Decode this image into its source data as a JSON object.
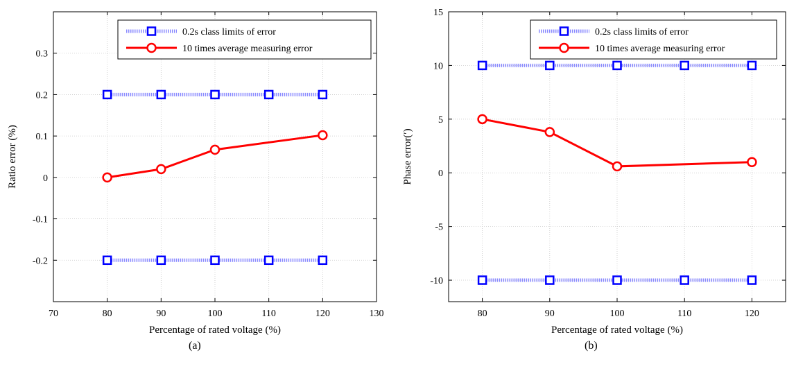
{
  "chart_data": [
    {
      "type": "line",
      "caption": "(a)",
      "xlabel": "Percentage of rated voltage (%)",
      "ylabel": "Ratio error (%)",
      "xlim": [
        70,
        130
      ],
      "ylim": [
        -0.3,
        0.4
      ],
      "xticks": [
        70,
        80,
        90,
        100,
        110,
        120,
        130
      ],
      "yticks": [
        -0.2,
        -0.1,
        0,
        0.1,
        0.2,
        0.3
      ],
      "ytick_labels": [
        "-0.2",
        "-0.1",
        "0",
        "0.1",
        "0.2",
        "0.3"
      ],
      "grid": true,
      "legend_position": "top-right",
      "series": [
        {
          "name": "0.2s class limits of error",
          "color": "#0000ff",
          "marker": "square",
          "style": "dotted",
          "x": [
            80,
            90,
            100,
            110,
            120
          ],
          "y": [
            0.2,
            0.2,
            0.2,
            0.2,
            0.2
          ]
        },
        {
          "name": "0.2s class limits of error",
          "color": "#0000ff",
          "marker": "square",
          "style": "dotted",
          "legend": false,
          "x": [
            80,
            90,
            100,
            110,
            120
          ],
          "y": [
            -0.2,
            -0.2,
            -0.2,
            -0.2,
            -0.2
          ]
        },
        {
          "name": "10 times average measuring error",
          "color": "#ff0000",
          "marker": "circle",
          "style": "solid",
          "x": [
            80,
            90,
            100,
            120
          ],
          "y": [
            0.0,
            0.02,
            0.067,
            0.102
          ]
        }
      ]
    },
    {
      "type": "line",
      "caption": "(b)",
      "xlabel": "Percentage of rated voltage (%)",
      "ylabel": "Phase error(′)",
      "xlim": [
        75,
        125
      ],
      "ylim": [
        -12,
        15
      ],
      "xticks": [
        80,
        90,
        100,
        110,
        120
      ],
      "yticks": [
        -10,
        -5,
        0,
        5,
        10,
        15
      ],
      "ytick_labels": [
        "-10",
        "-5",
        "0",
        "5",
        "10",
        "15"
      ],
      "grid": true,
      "legend_position": "top-right",
      "series": [
        {
          "name": "0.2s class limits of error",
          "color": "#0000ff",
          "marker": "square",
          "style": "dotted",
          "x": [
            80,
            90,
            100,
            110,
            120
          ],
          "y": [
            10,
            10,
            10,
            10,
            10
          ]
        },
        {
          "name": "0.2s class limits of error",
          "color": "#0000ff",
          "marker": "square",
          "style": "dotted",
          "legend": false,
          "x": [
            80,
            90,
            100,
            110,
            120
          ],
          "y": [
            -10,
            -10,
            -10,
            -10,
            -10
          ]
        },
        {
          "name": "10 times average measuring error",
          "color": "#ff0000",
          "marker": "circle",
          "style": "solid",
          "x": [
            80,
            90,
            100,
            120
          ],
          "y": [
            5.0,
            3.8,
            0.6,
            1.0
          ]
        }
      ]
    }
  ]
}
